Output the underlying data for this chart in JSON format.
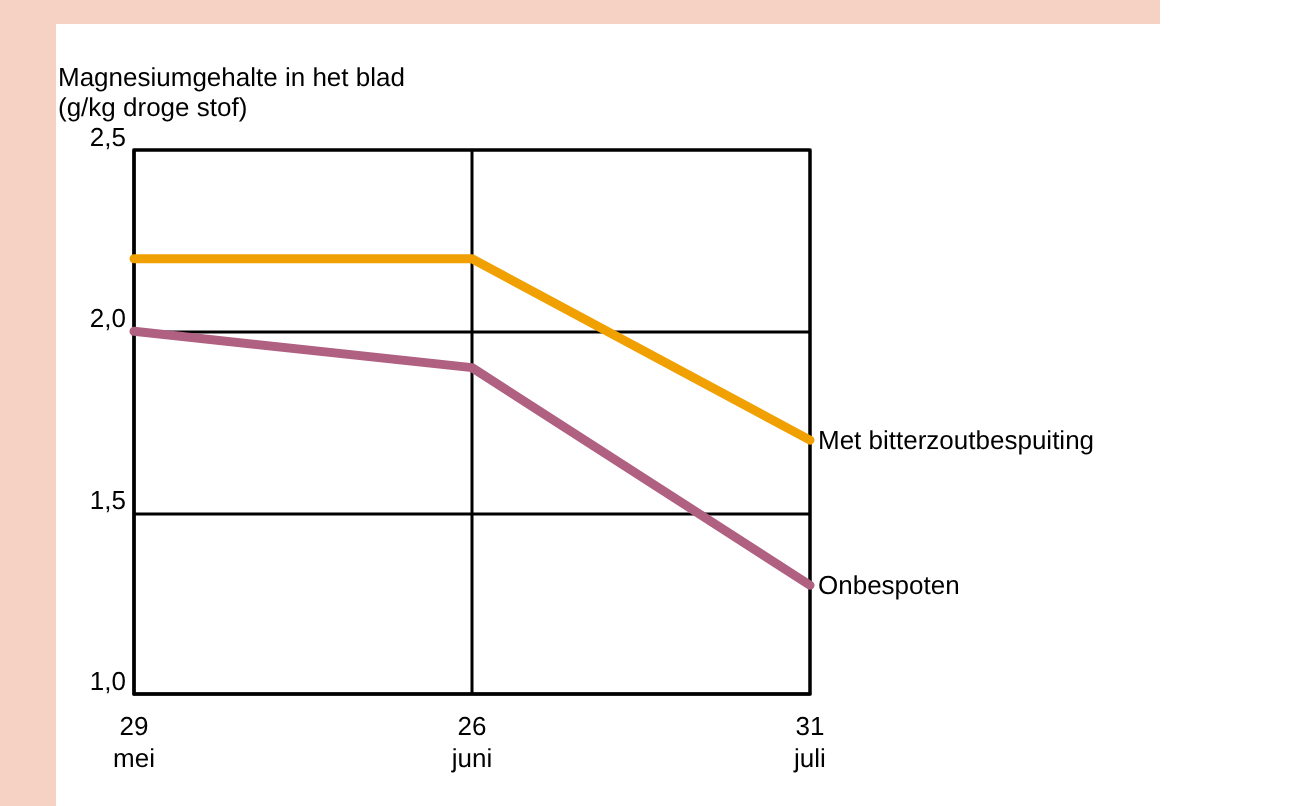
{
  "chart_data": {
    "type": "line",
    "ylabel": "Magnesiumgehalte in het blad\n(g/kg droge stof)",
    "categories": [
      "29\nmei",
      "26\njuni",
      "31\njuli"
    ],
    "series": [
      {
        "name": "Met bitterzoutbespuiting",
        "color": "#f0a000",
        "values": [
          2.2,
          2.2,
          1.7
        ]
      },
      {
        "name": "Onbespoten",
        "color": "#b06080",
        "values": [
          2.0,
          1.9,
          1.3
        ]
      }
    ],
    "ylim": [
      1.0,
      2.5
    ],
    "yticks": [
      {
        "value": 1.0,
        "label": "1,0"
      },
      {
        "value": 1.5,
        "label": "1,5"
      },
      {
        "value": 2.0,
        "label": "2,0"
      },
      {
        "value": 2.5,
        "label": "2,5"
      }
    ],
    "grid": true,
    "legend": false,
    "marker": "none",
    "line_style": "solid"
  }
}
